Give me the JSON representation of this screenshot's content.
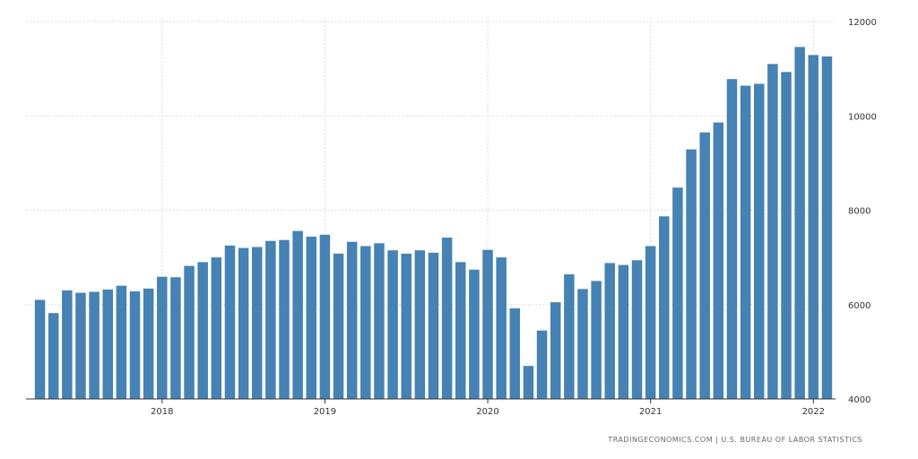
{
  "colors": {
    "bar": "#4682b4",
    "grid": "#dddddd",
    "axis": "#333333"
  },
  "source": "TRADINGECONOMICS.COM | U.S. BUREAU OF LABOR STATISTICS",
  "chart_data": {
    "type": "bar",
    "title": "",
    "xlabel": "",
    "ylabel": "",
    "ylim": [
      4000,
      12000
    ],
    "y_ticks": [
      4000,
      6000,
      8000,
      10000,
      12000
    ],
    "y_tick_labels": [
      "4000",
      "6000",
      "8000",
      "10000",
      "12000"
    ],
    "y_axis_side": "right",
    "grid": true,
    "x_ticks": [
      "2018",
      "2019",
      "2020",
      "2021",
      "2022"
    ],
    "x_tick_index": [
      9.5,
      21.5,
      33.5,
      45.5,
      57.5
    ],
    "categories": [
      "2017-04",
      "2017-05",
      "2017-06",
      "2017-07",
      "2017-08",
      "2017-09",
      "2017-10",
      "2017-11",
      "2017-12",
      "2018-01",
      "2018-02",
      "2018-03",
      "2018-04",
      "2018-05",
      "2018-06",
      "2018-07",
      "2018-08",
      "2018-09",
      "2018-10",
      "2018-11",
      "2018-12",
      "2019-01",
      "2019-02",
      "2019-03",
      "2019-04",
      "2019-05",
      "2019-06",
      "2019-07",
      "2019-08",
      "2019-09",
      "2019-10",
      "2019-11",
      "2019-12",
      "2020-01",
      "2020-02",
      "2020-03",
      "2020-04",
      "2020-05",
      "2020-06",
      "2020-07",
      "2020-08",
      "2020-09",
      "2020-10",
      "2020-11",
      "2020-12",
      "2021-01",
      "2021-02",
      "2021-03",
      "2021-04",
      "2021-05",
      "2021-06",
      "2021-07",
      "2021-08",
      "2021-09",
      "2021-10",
      "2021-11",
      "2021-12",
      "2022-01",
      "2022-02"
    ],
    "values": [
      6100,
      5820,
      6300,
      6250,
      6270,
      6320,
      6400,
      6280,
      6340,
      6590,
      6580,
      6820,
      6900,
      7000,
      7250,
      7200,
      7220,
      7350,
      7370,
      7560,
      7440,
      7480,
      7080,
      7330,
      7240,
      7300,
      7150,
      7080,
      7150,
      7100,
      7420,
      6900,
      6740,
      7160,
      7000,
      5920,
      4700,
      5450,
      6050,
      6640,
      6330,
      6500,
      6880,
      6840,
      6940,
      7240,
      7870,
      8480,
      9290,
      9650,
      9860,
      10780,
      10640,
      10680,
      11100,
      10930,
      11460,
      11290,
      11260
    ]
  }
}
